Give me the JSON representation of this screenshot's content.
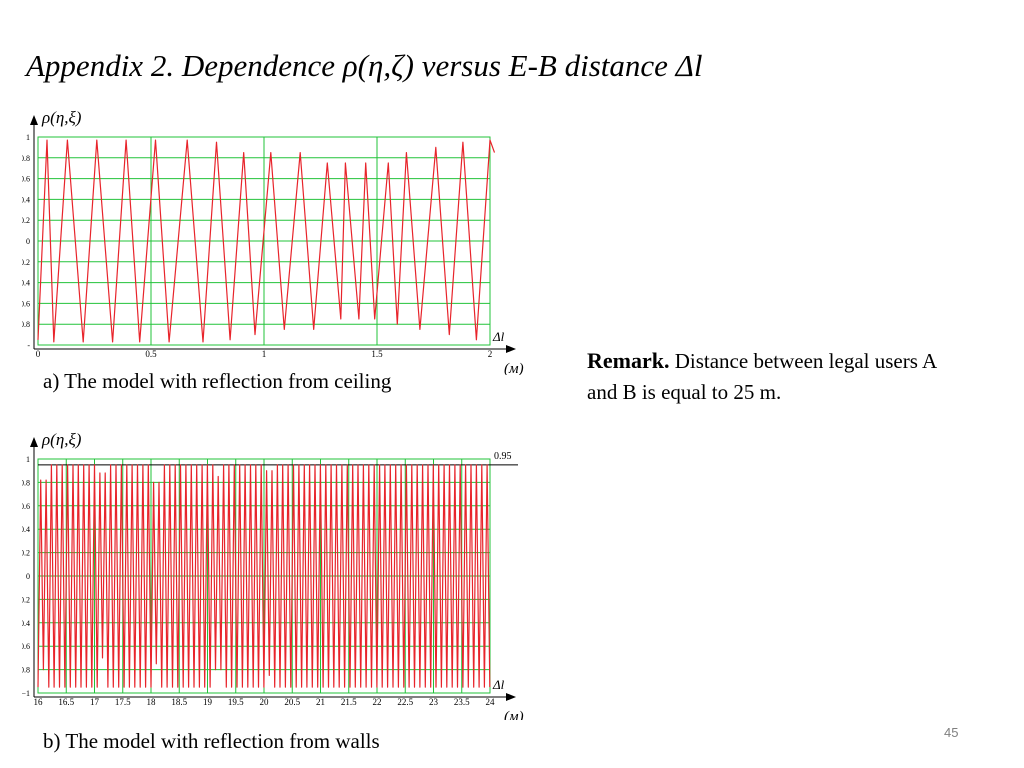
{
  "slide": {
    "title": "Appendix 2. Dependence ρ(η,ζ) versus E-B distance Δl",
    "caption_a": "a) The model with reflection from ceiling",
    "caption_b": "b) The model with reflection from walls",
    "remark_label": "Remark.",
    "remark_text": " Distance between legal users A and B is equal to 25 m.",
    "page_number": "45"
  },
  "chart_data": [
    {
      "type": "line",
      "ylabel": "ρ(η,ξ)",
      "xlabel": "Δl",
      "xunit": "(м)",
      "xlim": [
        0,
        2
      ],
      "ylim": [
        -1,
        1
      ],
      "x_ticks": [
        "0",
        "0.5",
        "1",
        "1.5",
        "2"
      ],
      "x_tick_values": [
        0,
        0.5,
        1,
        1.5,
        2
      ],
      "y_ticks": [
        "1",
        "0.8",
        "0.6",
        "0.4",
        "0.2",
        "0",
        "0.2",
        "0.4",
        "0.6",
        "0.8",
        "-"
      ],
      "y_tick_values": [
        1,
        0.8,
        0.6,
        0.4,
        0.2,
        0,
        -0.2,
        -0.4,
        -0.6,
        -0.8,
        -1
      ],
      "grid": true,
      "line_color": "#e8242b",
      "grid_color": "#22c33a",
      "series": [
        {
          "x": [
            0.0,
            0.04,
            0.07,
            0.13,
            0.2,
            0.26,
            0.33,
            0.39,
            0.45,
            0.52,
            0.58,
            0.66,
            0.73,
            0.79,
            0.85,
            0.91,
            0.96,
            1.03,
            1.09,
            1.16,
            1.22,
            1.28,
            1.34,
            1.36,
            1.42,
            1.45,
            1.49,
            1.55,
            1.59,
            1.63,
            1.69,
            1.76,
            1.82,
            1.88,
            1.94,
            2.0,
            2.02
          ],
          "y": [
            -0.95,
            0.97,
            -0.97,
            0.97,
            -0.97,
            0.97,
            -0.97,
            0.97,
            -0.97,
            0.97,
            -0.97,
            0.97,
            -0.97,
            0.95,
            -0.95,
            0.85,
            -0.9,
            0.85,
            -0.85,
            0.85,
            -0.85,
            0.75,
            -0.75,
            0.75,
            -0.75,
            0.75,
            -0.75,
            0.75,
            -0.8,
            0.85,
            -0.85,
            0.9,
            -0.9,
            0.95,
            -0.95,
            0.97,
            0.85
          ]
        }
      ]
    },
    {
      "type": "line",
      "ylabel": "ρ(η,ξ)",
      "xlabel": "Δl",
      "xunit": "(м)",
      "xlim": [
        16,
        24
      ],
      "ylim": [
        -1,
        1
      ],
      "x_ticks": [
        "16",
        "16.5",
        "17",
        "17.5",
        "18",
        "18.5",
        "19",
        "19.5",
        "20",
        "20.5",
        "21",
        "21.5",
        "22",
        "22.5",
        "23",
        "23.5",
        "24"
      ],
      "x_tick_values": [
        16,
        16.5,
        17,
        17.5,
        18,
        18.5,
        19,
        19.5,
        20,
        20.5,
        21,
        21.5,
        22,
        22.5,
        23,
        23.5,
        24
      ],
      "y_ticks": [
        "1",
        "0.8",
        "0.6",
        "0.4",
        "0.2",
        "0",
        "−0.2",
        "−0.4",
        "−0.6",
        "−0.8",
        "−1"
      ],
      "y_tick_values": [
        1,
        0.8,
        0.6,
        0.4,
        0.2,
        0,
        -0.2,
        -0.4,
        -0.6,
        -0.8,
        -1
      ],
      "annotations": [
        {
          "text": "0.95",
          "y": 0.95
        }
      ],
      "grid": true,
      "line_color": "#e8242b",
      "grid_color": "#22c33a",
      "oscillation": {
        "period": 0.0952,
        "peak_max": 0.95,
        "trough_min": -0.95,
        "reduced_peaks": [
          {
            "x": 16.1,
            "peak": 0.82,
            "trough": -0.8
          },
          {
            "x": 17.15,
            "peak": 0.88,
            "trough": -0.7
          },
          {
            "x": 18.1,
            "peak": 0.8,
            "trough": -0.75
          },
          {
            "x": 19.2,
            "peak": 0.85,
            "trough": -0.8
          },
          {
            "x": 20.1,
            "peak": 0.9,
            "trough": -0.85
          }
        ]
      }
    }
  ]
}
